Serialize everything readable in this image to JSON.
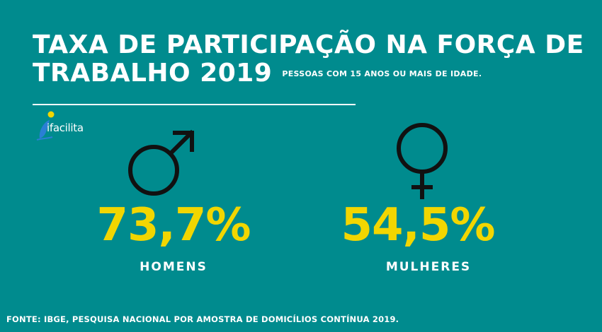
{
  "header": {
    "title_line1": "TAXA DE PARTICIPAÇÃO NA FORÇA DE",
    "title_line2": "TRABALHO 2019",
    "subtitle": "PESSOAS COM 15 ANOS OU MAIS DE IDADE."
  },
  "logo": {
    "text": "ifacilita"
  },
  "colors": {
    "background": "#008b8e",
    "value": "#f2d600",
    "text": "#ffffff",
    "symbol": "#111111"
  },
  "icons": {
    "men": "male-symbol-icon",
    "women": "female-symbol-icon"
  },
  "chart_data": {
    "type": "table",
    "categories": [
      "HOMENS",
      "MULHERES"
    ],
    "values": [
      73.7,
      54.5
    ],
    "value_labels": [
      "73,7%",
      "54,5%"
    ],
    "unit": "%"
  },
  "footer": {
    "source": "FONTE: IBGE, PESQUISA NACIONAL POR AMOSTRA DE DOMICÍLIOS CONTÍNUA 2019."
  }
}
